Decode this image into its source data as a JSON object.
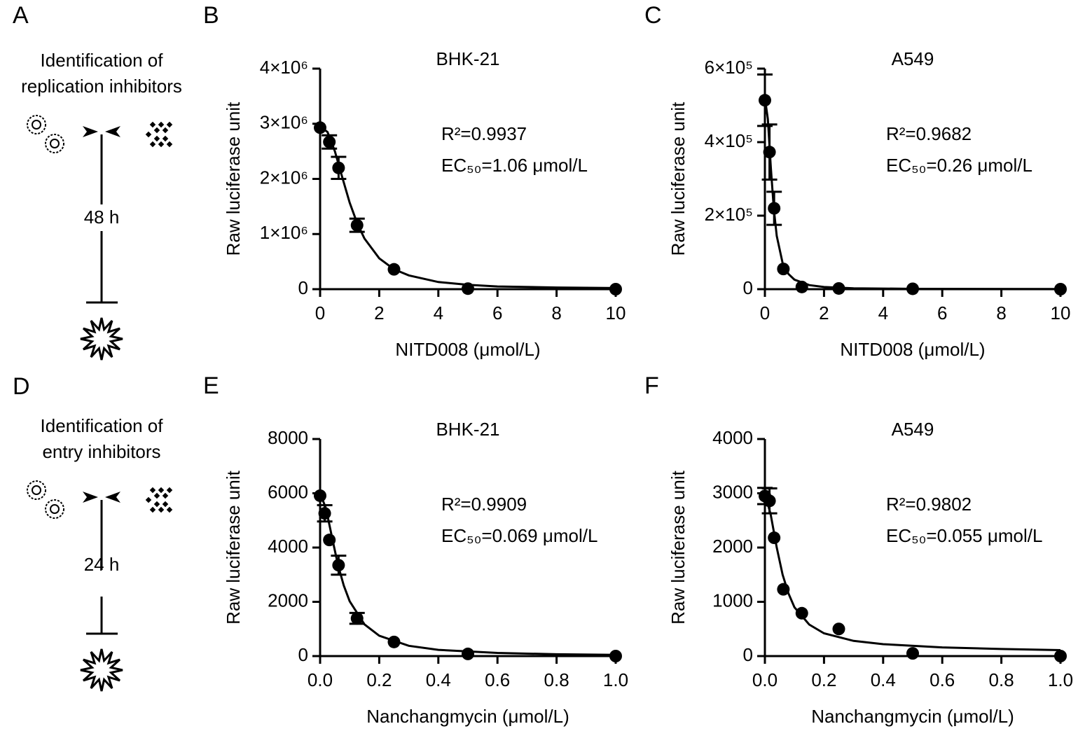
{
  "panels": [
    {
      "label": "A",
      "title_lines": [
        "Identification of",
        "replication inhibitors"
      ],
      "time": "48 h"
    },
    {
      "label": "D",
      "title_lines": [
        "Identification of",
        "entry inhibitors"
      ],
      "time": "24 h"
    }
  ],
  "chart_data": [
    {
      "type": "scatter",
      "panel_label": "B",
      "title": "BHK-21",
      "x_label": "NITD008 (μmol/L)",
      "y_label": "Raw luciferase unit",
      "annotations": [
        "R²=0.9937",
        "EC₅₀=1.06 μmol/L"
      ],
      "color": "#000000",
      "xlim": [
        0,
        10
      ],
      "xticks": [
        0,
        2,
        4,
        6,
        8,
        10
      ],
      "ylim": [
        0,
        4000000
      ],
      "yticks": [
        0,
        {
          "value": 1000000,
          "label": "1×10⁶"
        },
        {
          "value": 2000000,
          "label": "2×10⁶"
        },
        {
          "value": 3000000,
          "label": "3×10⁶"
        },
        {
          "value": 4000000,
          "label": "4×10⁶"
        }
      ],
      "points": {
        "x": [
          0,
          0.3125,
          0.625,
          1.25,
          2.5,
          5,
          10
        ],
        "values": [
          2930000,
          2670000,
          2200000,
          1160000,
          360000,
          10000,
          0
        ],
        "errors": [
          null,
          120000,
          200000,
          120000,
          null,
          null,
          null
        ]
      },
      "fit": {
        "x": [
          0,
          0.25,
          0.5,
          0.75,
          1,
          1.25,
          1.5,
          2,
          2.5,
          3,
          4,
          5,
          6,
          8,
          10
        ],
        "values": [
          2950000,
          2850000,
          2500000,
          2030000,
          1570000,
          1200000,
          920000,
          560000,
          360000,
          250000,
          130000,
          80000,
          50000,
          30000,
          20000
        ]
      }
    },
    {
      "type": "scatter",
      "panel_label": "C",
      "title": "A549",
      "x_label": "NITD008 (μmol/L)",
      "y_label": "Raw luciferase unit",
      "annotations": [
        "R²=0.9682",
        "EC₅₀=0.26 μmol/L"
      ],
      "color": "#000000",
      "xlim": [
        0,
        10
      ],
      "xticks": [
        0,
        2,
        4,
        6,
        8,
        10
      ],
      "ylim": [
        0,
        600000
      ],
      "yticks": [
        0,
        {
          "value": 200000,
          "label": "2×10⁵"
        },
        {
          "value": 400000,
          "label": "4×10⁵"
        },
        {
          "value": 600000,
          "label": "6×10⁵"
        }
      ],
      "points": {
        "x": [
          0,
          0.156,
          0.3125,
          0.625,
          1.25,
          2.5,
          5,
          10
        ],
        "values": [
          514000,
          373000,
          220000,
          55000,
          6000,
          2000,
          1000,
          0
        ],
        "errors": [
          70000,
          75000,
          45000,
          null,
          null,
          null,
          null,
          null
        ]
      },
      "fit": {
        "x": [
          0,
          0.1,
          0.2,
          0.3,
          0.4,
          0.6,
          0.8,
          1,
          1.5,
          2,
          3,
          5,
          10
        ],
        "values": [
          520000,
          463000,
          333000,
          219000,
          145000,
          71000,
          41000,
          26000,
          11000,
          6000,
          2500,
          1000,
          300
        ]
      }
    },
    {
      "type": "scatter",
      "panel_label": "E",
      "title": "BHK-21",
      "x_label": "Nanchangmycin (μmol/L)",
      "y_label": "Raw luciferase unit",
      "annotations": [
        "R²=0.9909",
        "EC₅₀=0.069 μmol/L"
      ],
      "color": "#000000",
      "xlim": [
        0,
        1
      ],
      "xticks": [
        {
          "value": 0,
          "label": "0.0"
        },
        0.2,
        0.4,
        0.6,
        0.8,
        {
          "value": 1,
          "label": "1.0"
        }
      ],
      "ylim": [
        0,
        8000
      ],
      "yticks": [
        0,
        2000,
        4000,
        6000,
        8000
      ],
      "points": {
        "x": [
          0,
          0.0156,
          0.03125,
          0.0625,
          0.125,
          0.25,
          0.5,
          1
        ],
        "values": [
          5910,
          5260,
          4280,
          3350,
          1390,
          520,
          80,
          0
        ],
        "errors": [
          null,
          300,
          null,
          350,
          200,
          null,
          null,
          null
        ]
      },
      "fit": {
        "x": [
          0,
          0.02,
          0.04,
          0.06,
          0.08,
          0.1,
          0.15,
          0.2,
          0.3,
          0.4,
          0.6,
          0.8,
          1
        ],
        "values": [
          6000,
          5440,
          4390,
          3380,
          2600,
          2020,
          1170,
          750,
          380,
          230,
          115,
          67,
          45
        ]
      }
    },
    {
      "type": "scatter",
      "panel_label": "F",
      "title": "A549",
      "x_label": "Nanchangmycin (μmol/L)",
      "y_label": "Raw luciferase unit",
      "annotations": [
        "R²=0.9802",
        "EC₅₀=0.055 μmol/L"
      ],
      "color": "#000000",
      "xlim": [
        0,
        1
      ],
      "xticks": [
        {
          "value": 0,
          "label": "0.0"
        },
        0.2,
        0.4,
        0.6,
        0.8,
        {
          "value": 1,
          "label": "1.0"
        }
      ],
      "ylim": [
        0,
        4000
      ],
      "yticks": [
        0,
        1000,
        2000,
        3000,
        4000
      ],
      "points": {
        "x": [
          0,
          0.0156,
          0.03125,
          0.0625,
          0.125,
          0.25,
          0.5,
          1
        ],
        "values": [
          2950,
          2860,
          2180,
          1230,
          790,
          500,
          50,
          0
        ],
        "errors": [
          150,
          230,
          null,
          null,
          null,
          null,
          null,
          null
        ]
      },
      "fit": {
        "x": [
          0,
          0.02,
          0.04,
          0.06,
          0.08,
          0.1,
          0.15,
          0.2,
          0.3,
          0.4,
          0.6,
          0.8,
          1
        ],
        "values": [
          3000,
          2600,
          2000,
          1500,
          1150,
          900,
          580,
          420,
          280,
          220,
          160,
          130,
          110
        ]
      }
    }
  ]
}
